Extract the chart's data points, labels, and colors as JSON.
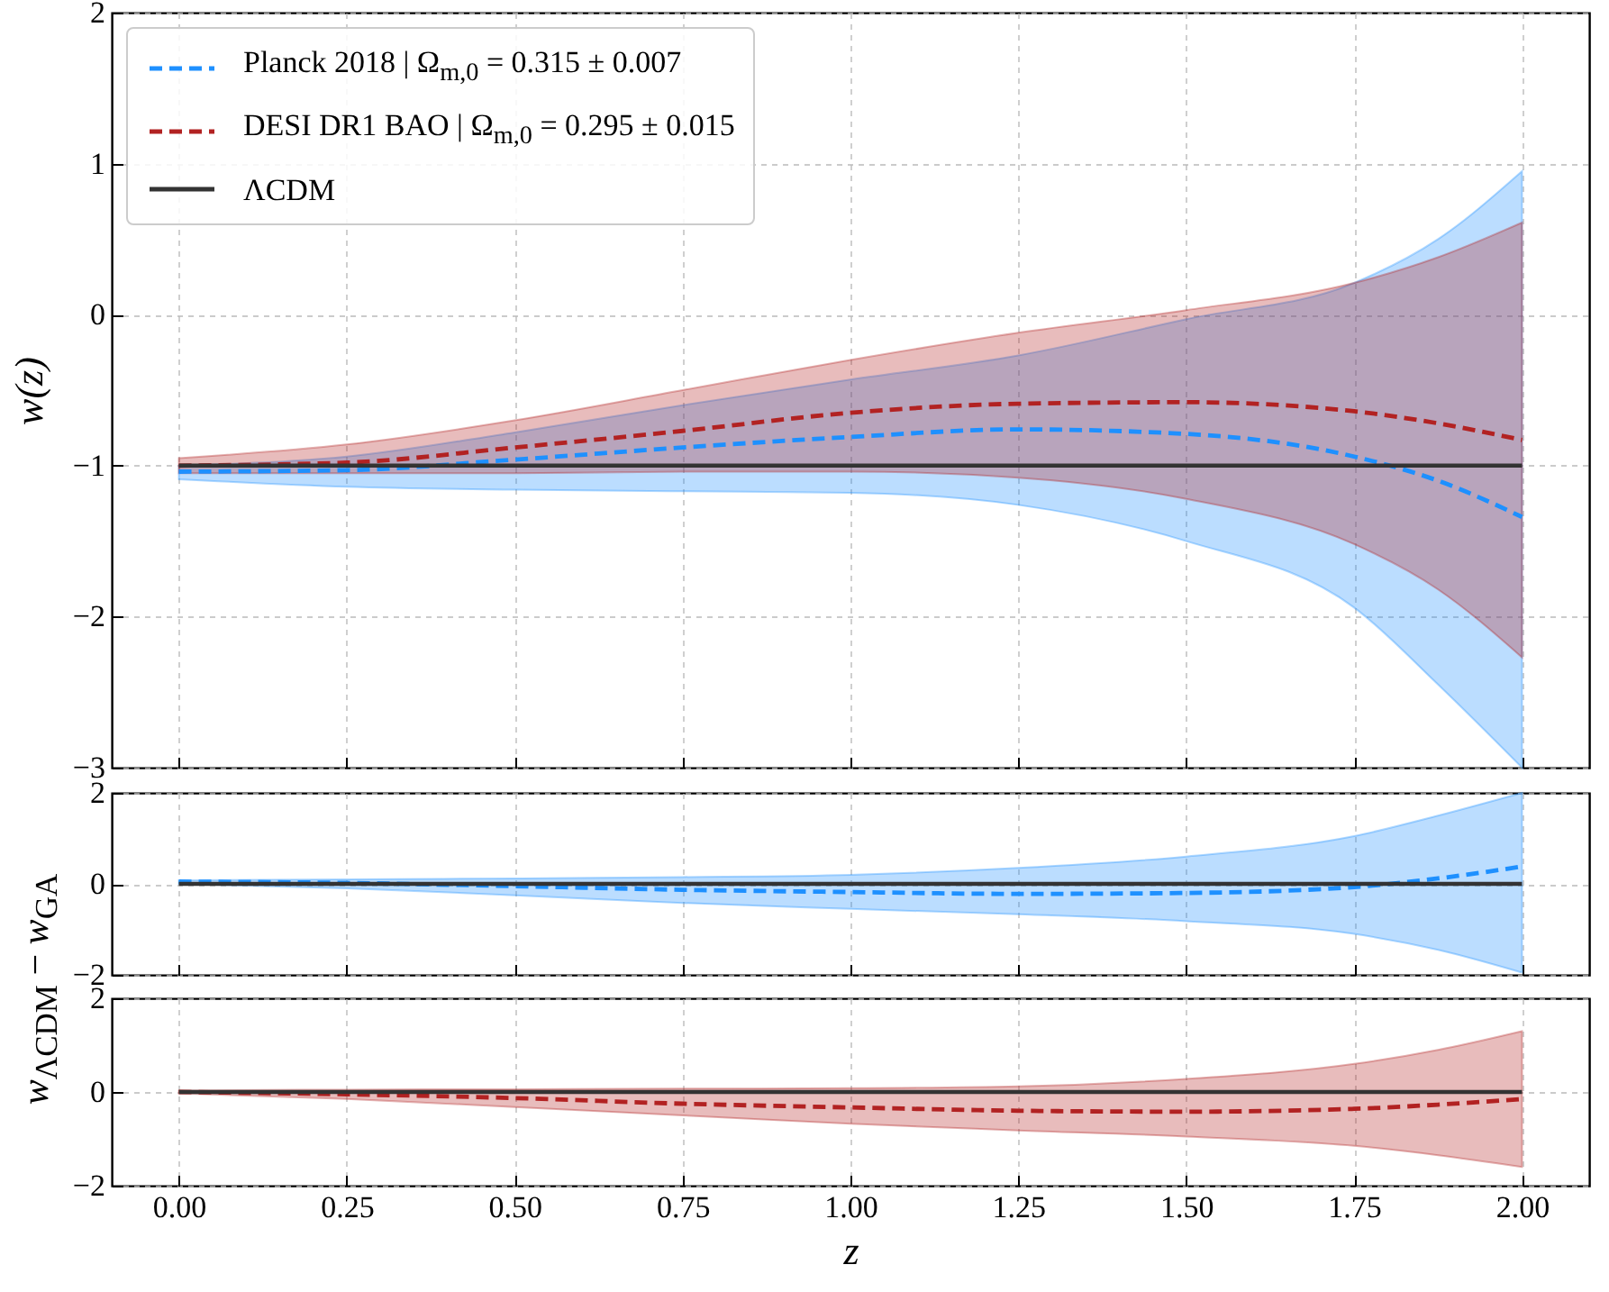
{
  "chart_data": [
    {
      "type": "line",
      "ylabel": "w(z)",
      "xlim": [
        -0.1,
        2.1
      ],
      "ylim": [
        -3,
        2
      ],
      "yticks": [
        -3,
        -2,
        -1,
        0,
        1,
        2
      ],
      "xticks": [
        0,
        0.25,
        0.5,
        0.75,
        1,
        1.25,
        1.5,
        1.75,
        2
      ],
      "tick_labels": "y",
      "grid": true,
      "legend": "top left",
      "series": [
        {
          "name": "Planck 2018 | Ω$_{m,0}$ = 0.315 ± 0.007",
          "color": "#1e90ff",
          "line_style": "dashed",
          "x": [
            0,
            0.25,
            0.5,
            0.75,
            1,
            1.25,
            1.5,
            1.75,
            1.875,
            2
          ],
          "values": [
            -1.04,
            -1.03,
            -0.96,
            -0.88,
            -0.81,
            -0.76,
            -0.79,
            -0.94,
            -1.1,
            -1.34
          ],
          "lower": [
            -1.09,
            -1.14,
            -1.16,
            -1.17,
            -1.18,
            -1.26,
            -1.5,
            -1.94,
            -2.45,
            -3
          ],
          "upper": [
            -1.0,
            -0.94,
            -0.78,
            -0.6,
            -0.43,
            -0.27,
            -0.03,
            0.21,
            0.5,
            0.95
          ]
        },
        {
          "name": "DESI DR1 BAO | Ω$_{m,0}$ = 0.295 ± 0.015",
          "color": "#b22222",
          "line_style": "dashed",
          "x": [
            0,
            0.25,
            0.5,
            0.75,
            1,
            1.25,
            1.5,
            1.75,
            1.875,
            2
          ],
          "values": [
            -1.0,
            -0.98,
            -0.88,
            -0.77,
            -0.65,
            -0.59,
            -0.58,
            -0.64,
            -0.72,
            -0.83
          ],
          "lower": [
            -1.05,
            -1.05,
            -1.05,
            -1.04,
            -1.04,
            -1.08,
            -1.22,
            -1.52,
            -1.82,
            -2.27
          ],
          "upper": [
            -0.95,
            -0.86,
            -0.7,
            -0.5,
            -0.3,
            -0.12,
            0.03,
            0.21,
            0.38,
            0.61
          ]
        },
        {
          "name": "ΛCDM",
          "color": "#333333",
          "line_style": "solid",
          "x": [
            0,
            2
          ],
          "values": [
            -1,
            -1
          ]
        }
      ]
    },
    {
      "type": "line",
      "ylabel": "w$_{ΛCDM}$ − w$_{GA}$",
      "xlim": [
        -0.1,
        2.1
      ],
      "ylim": [
        -2,
        2
      ],
      "yticks": [
        -2,
        0,
        2
      ],
      "xticks": [
        0,
        0.25,
        0.5,
        0.75,
        1,
        1.25,
        1.5,
        1.75,
        2
      ],
      "tick_labels": "y",
      "grid": true,
      "series": [
        {
          "color": "#1e90ff",
          "line_style": "dashed",
          "x": [
            0,
            0.25,
            0.5,
            0.75,
            1,
            1.25,
            1.5,
            1.75,
            1.875,
            2
          ],
          "values": [
            0.05,
            0.02,
            -0.05,
            -0.13,
            -0.18,
            -0.22,
            -0.2,
            -0.07,
            0.12,
            0.38
          ],
          "lower": [
            0.0,
            -0.1,
            -0.25,
            -0.42,
            -0.55,
            -0.67,
            -0.82,
            -1.1,
            -1.45,
            -1.95
          ],
          "upper": [
            0.08,
            0.1,
            0.12,
            0.15,
            0.2,
            0.35,
            0.6,
            1.05,
            1.5,
            2
          ]
        },
        {
          "color": "#333333",
          "line_style": "solid",
          "x": [
            0,
            2
          ],
          "values": [
            0,
            0
          ]
        }
      ]
    },
    {
      "type": "line",
      "xlabel": "z",
      "xlim": [
        -0.1,
        2.1
      ],
      "ylim": [
        -2,
        2
      ],
      "yticks": [
        -2,
        0,
        2
      ],
      "xticks": [
        {
          "value": 0,
          "label": "0.00"
        },
        {
          "value": 0.25,
          "label": "0.25"
        },
        {
          "value": 0.5,
          "label": "0.50"
        },
        {
          "value": 0.75,
          "label": "0.75"
        },
        {
          "value": 1,
          "label": "1.00"
        },
        {
          "value": 1.25,
          "label": "1.25"
        },
        {
          "value": 1.5,
          "label": "1.50"
        },
        {
          "value": 1.75,
          "label": "1.75"
        },
        {
          "value": 2,
          "label": "2.00"
        }
      ],
      "grid": true,
      "series": [
        {
          "color": "#b22222",
          "line_style": "dashed",
          "x": [
            0,
            0.25,
            0.5,
            0.75,
            1,
            1.25,
            1.5,
            1.75,
            1.875,
            2
          ],
          "values": [
            0,
            -0.05,
            -0.13,
            -0.25,
            -0.33,
            -0.4,
            -0.42,
            -0.36,
            -0.27,
            -0.15
          ],
          "lower": [
            -0.03,
            -0.15,
            -0.32,
            -0.5,
            -0.68,
            -0.82,
            -0.95,
            -1.15,
            -1.35,
            -1.6
          ],
          "upper": [
            0.03,
            0.05,
            0.06,
            0.07,
            0.08,
            0.12,
            0.28,
            0.6,
            0.9,
            1.3
          ]
        },
        {
          "color": "#333333",
          "line_style": "solid",
          "x": [
            0,
            2
          ],
          "values": [
            0,
            0
          ]
        }
      ]
    }
  ]
}
